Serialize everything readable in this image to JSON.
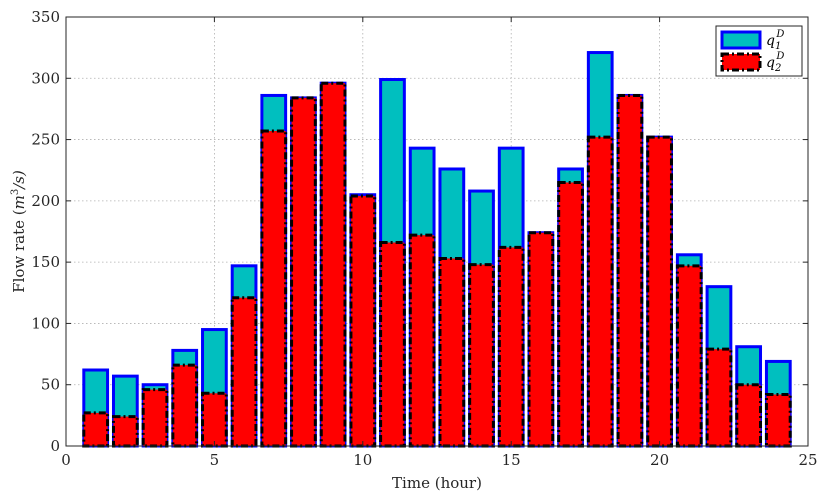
{
  "chart_data": {
    "type": "bar",
    "xlabel": "Time (hour)",
    "ylabel_prefix": "Flow rate (",
    "ylabel_unit_base": "m",
    "ylabel_unit_exp": "3",
    "ylabel_unit_tail": "/s)",
    "xlim": [
      0,
      25
    ],
    "ylim": [
      0,
      350
    ],
    "xticks": [
      0,
      5,
      10,
      15,
      20,
      25
    ],
    "yticks": [
      0,
      50,
      100,
      150,
      200,
      250,
      300,
      350
    ],
    "grid": true,
    "legend_position": "top-right",
    "x": [
      1,
      2,
      3,
      4,
      5,
      6,
      7,
      8,
      9,
      10,
      11,
      12,
      13,
      14,
      15,
      16,
      17,
      18,
      19,
      20,
      21,
      22,
      23,
      24
    ],
    "series": [
      {
        "name": "q_1^D",
        "legend_base": "q",
        "legend_sub": "1",
        "legend_sup": "D",
        "face_color": "#00bfbf",
        "edge_color": "#0000ff",
        "edge_style": "solid",
        "values": [
          62,
          57,
          50,
          78,
          95,
          147,
          286,
          284,
          296,
          205,
          299,
          243,
          226,
          208,
          243,
          174,
          226,
          321,
          286,
          252,
          156,
          130,
          81,
          69
        ]
      },
      {
        "name": "q_2^D",
        "legend_base": "q",
        "legend_sub": "2",
        "legend_sup": "D",
        "face_color": "#ff0000",
        "edge_color": "#000000",
        "edge_style": "dash-dot",
        "values": [
          27,
          24,
          46,
          66,
          43,
          121,
          257,
          284,
          296,
          204,
          166,
          172,
          153,
          148,
          162,
          174,
          215,
          252,
          286,
          252,
          147,
          79,
          50,
          42
        ]
      }
    ]
  }
}
